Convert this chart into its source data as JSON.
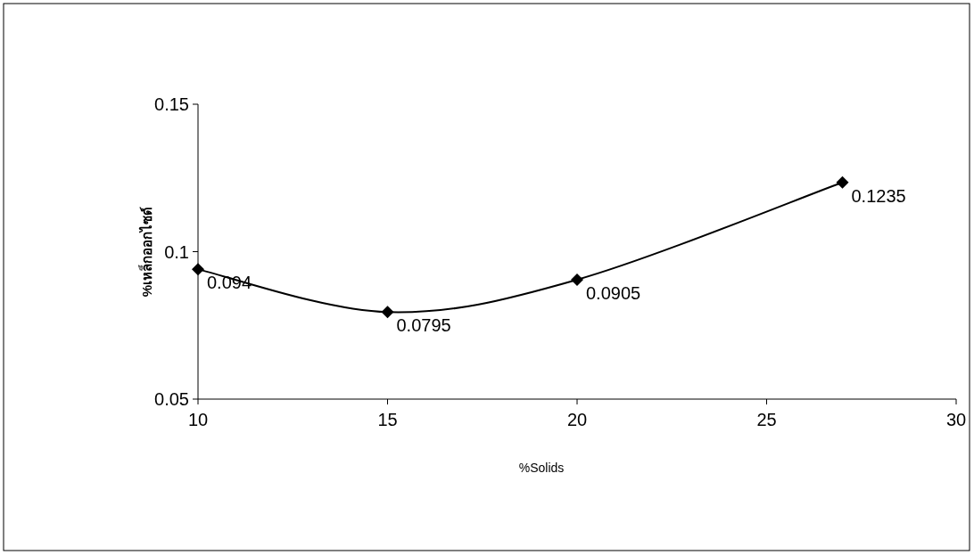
{
  "chart_data": {
    "type": "line",
    "xlabel": "%Solids",
    "ylabel": "%เหล็กออกไซด์",
    "x": [
      10,
      15,
      20,
      27
    ],
    "series": [
      {
        "color": "#000000",
        "values": [
          0.094,
          0.0795,
          0.0905,
          0.1235
        ]
      }
    ],
    "xlim": [
      10,
      30
    ],
    "ylim": [
      0.05,
      0.15
    ],
    "xticks": [
      10,
      15,
      20,
      25,
      30
    ],
    "yticks": [
      0.05,
      0.1,
      0.15
    ],
    "marker": "diamond",
    "line_style": "solid",
    "data_labels": true
  }
}
